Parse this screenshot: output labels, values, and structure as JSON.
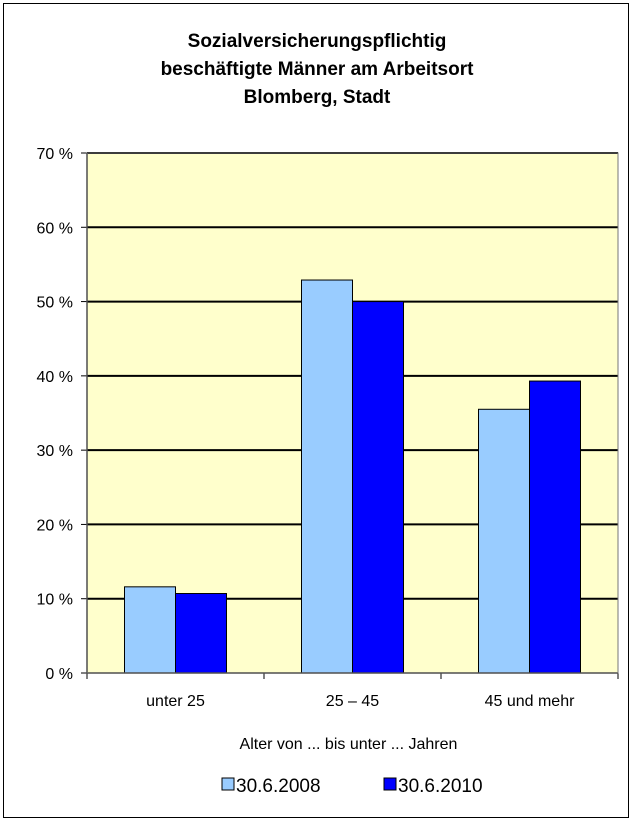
{
  "chart_data": {
    "type": "bar",
    "title_lines": [
      "Sozialversicherungspflichtig",
      "beschäftigte Männer am Arbeitsort",
      "Blomberg, Stadt"
    ],
    "categories": [
      "unter 25",
      "25 – 45",
      "45 und mehr"
    ],
    "series": [
      {
        "name": "30.6.2008",
        "values": [
          11.6,
          52.9,
          35.5
        ],
        "color": "#99ccff"
      },
      {
        "name": "30.6.2010",
        "values": [
          10.7,
          50.0,
          39.3
        ],
        "color": "#0000ff"
      }
    ],
    "xlabel": "Alter von ... bis unter ... Jahren",
    "ylim": [
      0,
      70
    ],
    "yticks": [
      0,
      10,
      20,
      30,
      40,
      50,
      60,
      70
    ],
    "ytick_suffix": " %",
    "grid": true,
    "plot_background": "#ffffcc",
    "legend_position": "bottom"
  }
}
